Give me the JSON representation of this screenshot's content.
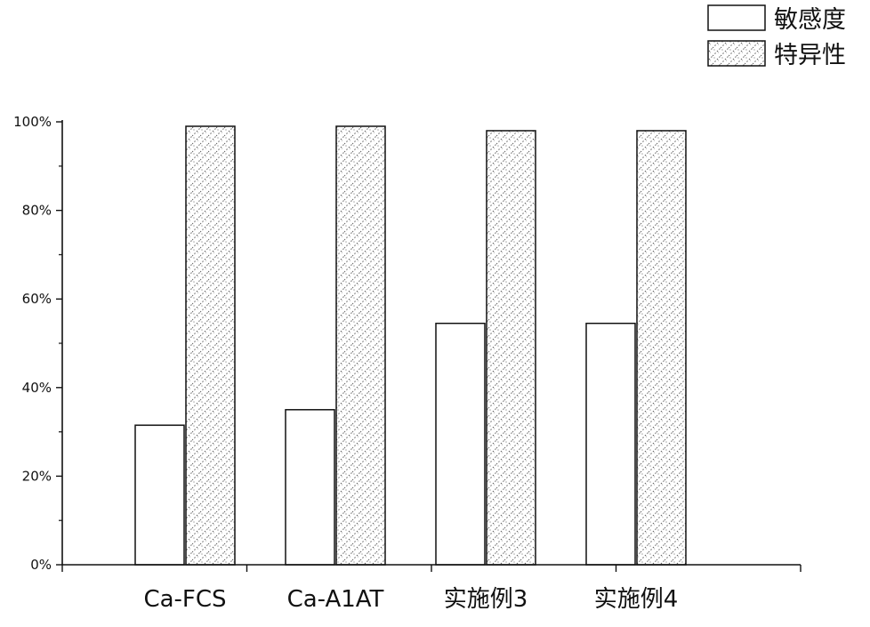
{
  "chart_data": {
    "type": "bar",
    "title": "",
    "xlabel": "",
    "ylabel": "",
    "categories": [
      "Ca-FCS",
      "Ca-A1AT",
      "实施例3",
      "实施例4"
    ],
    "series": [
      {
        "name": "敏感度",
        "values": [
          31.5,
          35,
          54.5,
          54.5
        ],
        "fill": "#ffffff",
        "pattern": "none"
      },
      {
        "name": "特异性",
        "values": [
          99,
          99,
          98,
          98
        ],
        "fill": "#ffffff",
        "pattern": "dotted-hatch"
      }
    ],
    "ylim": [
      0,
      100
    ],
    "y_ticks": [
      {
        "value": 0,
        "label": "0%"
      },
      {
        "value": 20,
        "label": "20%"
      },
      {
        "value": 40,
        "label": "40%"
      },
      {
        "value": 60,
        "label": "60%"
      },
      {
        "value": 80,
        "label": "80%"
      },
      {
        "value": 100,
        "label": "100%"
      }
    ],
    "y_minor_ticks": [
      10,
      30,
      50,
      70,
      90
    ],
    "grid": false,
    "legend_position": "top-right",
    "colors": {
      "axis": "#111111",
      "bar_stroke": "#111111",
      "hatch": "#5a5a5a"
    }
  }
}
